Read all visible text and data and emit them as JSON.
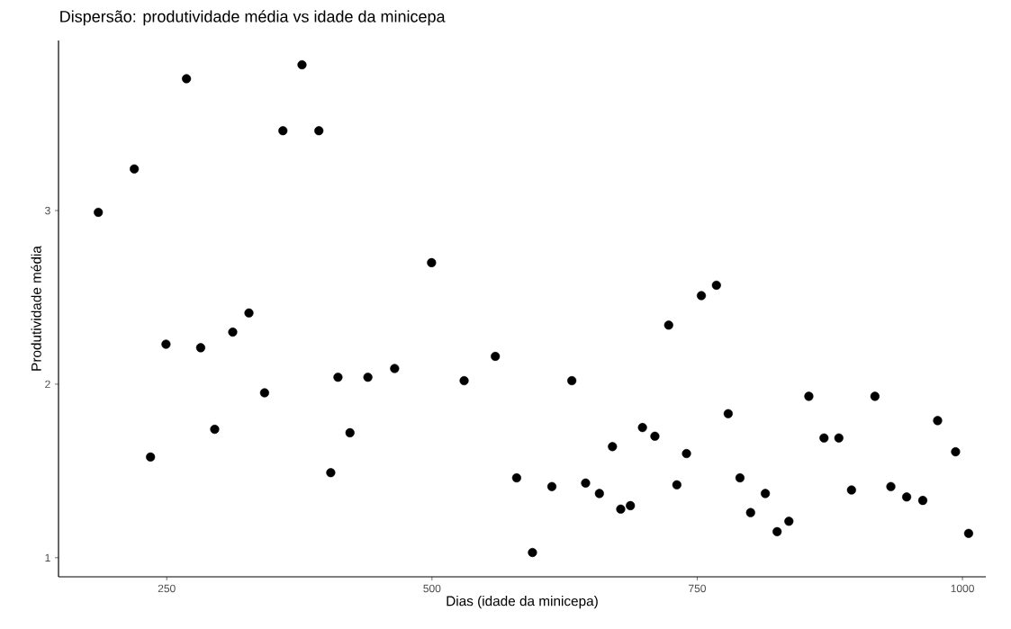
{
  "chart_data": {
    "type": "scatter",
    "title": "Dispersão: produtividade média vs idade da minicepa",
    "xlabel": "Dias (idade da minicepa)",
    "ylabel": "Produtividade média",
    "x": [
      185.5,
      219.4,
      268.6,
      359.5,
      377.5,
      393.4,
      499.6,
      327.5,
      249.3,
      234.7,
      282.0,
      295.2,
      312.2,
      342.2,
      404.6,
      411.4,
      422.7,
      439.6,
      464.8,
      530.3,
      559.7,
      579.8,
      594.7,
      613.0,
      631.8,
      644.8,
      657.8,
      670.1,
      677.9,
      687.0,
      698.4,
      710.1,
      723.1,
      730.8,
      739.9,
      753.9,
      768.1,
      779.2,
      790.3,
      800.3,
      814.2,
      825.3,
      836.4,
      855.2,
      869.5,
      883.5,
      895.4,
      917.5,
      932.5,
      947.4,
      962.6,
      976.6,
      993.5,
      1005.8
    ],
    "values": [
      2.99,
      3.24,
      3.76,
      3.46,
      3.84,
      3.46,
      2.7,
      2.41,
      2.23,
      1.58,
      2.21,
      1.74,
      2.3,
      1.95,
      1.49,
      2.04,
      1.72,
      2.04,
      2.09,
      2.02,
      2.16,
      1.46,
      1.03,
      1.41,
      2.02,
      1.43,
      1.37,
      1.64,
      1.28,
      1.3,
      1.75,
      1.7,
      2.34,
      1.42,
      1.6,
      2.51,
      2.57,
      1.83,
      1.46,
      1.26,
      1.37,
      1.15,
      1.21,
      1.93,
      1.69,
      1.69,
      1.39,
      1.93,
      1.41,
      1.35,
      1.33,
      1.79,
      1.61,
      1.14
    ],
    "color": "#000000",
    "marker": "circle",
    "xlim": [
      148,
      1022
    ],
    "ylim": [
      0.89,
      3.98
    ],
    "xticks": [
      250,
      500,
      750,
      1000
    ],
    "yticks": [
      1,
      2,
      3
    ]
  }
}
